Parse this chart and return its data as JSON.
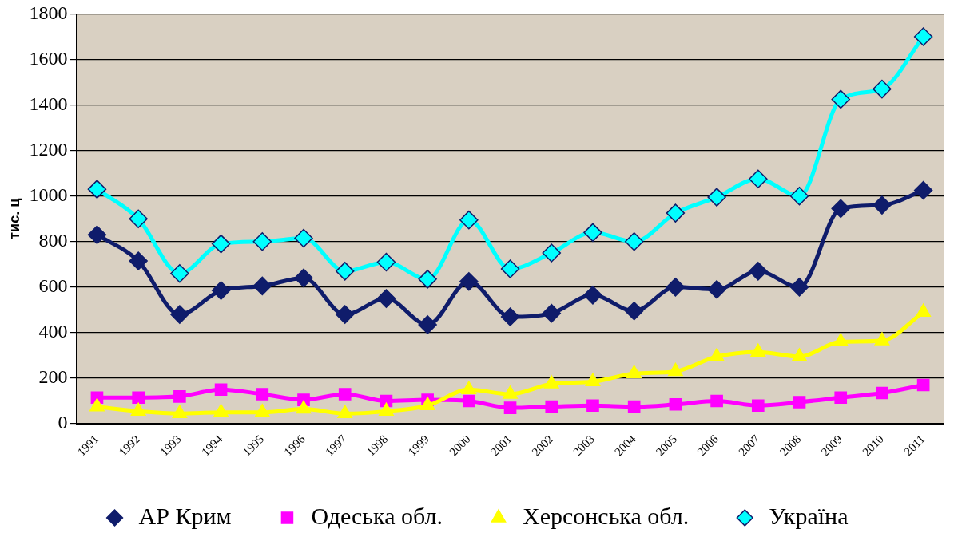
{
  "chart_data": {
    "type": "line",
    "ylabel": "тис. ц",
    "categories": [
      "1991",
      "1992",
      "1993",
      "1994",
      "1995",
      "1996",
      "1997",
      "1998",
      "1999",
      "2000",
      "2001",
      "2002",
      "2003",
      "2004",
      "2005",
      "2006",
      "2007",
      "2008",
      "2009",
      "2010",
      "2011"
    ],
    "series": [
      {
        "name": "АР Крим",
        "color": "#0f1c6b",
        "marker": "diamond",
        "values": [
          830,
          715,
          480,
          585,
          605,
          640,
          480,
          550,
          435,
          625,
          470,
          485,
          565,
          495,
          600,
          590,
          670,
          600,
          945,
          960,
          1025
        ]
      },
      {
        "name": "Одеська обл.",
        "color": "#ff00ff",
        "marker": "square",
        "values": [
          115,
          115,
          120,
          150,
          130,
          105,
          130,
          100,
          105,
          100,
          70,
          75,
          80,
          75,
          85,
          100,
          80,
          95,
          115,
          135,
          170
        ]
      },
      {
        "name": "Херсонська обл.",
        "color": "#ffff00",
        "marker": "triangle",
        "values": [
          75,
          55,
          45,
          50,
          50,
          65,
          45,
          55,
          80,
          150,
          130,
          175,
          185,
          220,
          230,
          295,
          315,
          295,
          360,
          365,
          490
        ]
      },
      {
        "name": "Україна",
        "color": "#00ffff",
        "marker": "diamond",
        "values": [
          1030,
          900,
          660,
          790,
          800,
          815,
          670,
          710,
          635,
          895,
          680,
          750,
          840,
          800,
          925,
          995,
          1075,
          1000,
          1425,
          1470,
          1700
        ]
      }
    ],
    "ylim": [
      0,
      1800
    ],
    "yticks": [
      0,
      200,
      400,
      600,
      800,
      1000,
      1200,
      1400,
      1600,
      1800
    ],
    "grid": "y",
    "legend": "bottom"
  }
}
